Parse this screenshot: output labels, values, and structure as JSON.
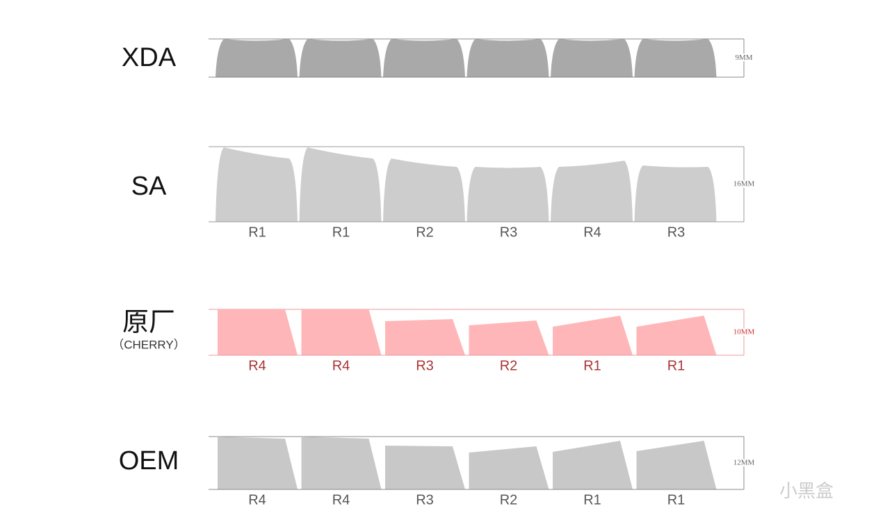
{
  "profiles": [
    {
      "name": "XDA",
      "height": "9MM",
      "rows": []
    },
    {
      "name": "SA",
      "height": "16MM",
      "rows": [
        "R1",
        "R1",
        "R2",
        "R3",
        "R4",
        "R3"
      ]
    },
    {
      "name": "原厂",
      "subname": "（CHERRY）",
      "height": "10MM",
      "rows": [
        "R4",
        "R4",
        "R3",
        "R2",
        "R1",
        "R1"
      ]
    },
    {
      "name": "OEM",
      "height": "12MM",
      "rows": [
        "R4",
        "R4",
        "R3",
        "R2",
        "R1",
        "R1"
      ]
    }
  ],
  "watermark": "小黑盒"
}
